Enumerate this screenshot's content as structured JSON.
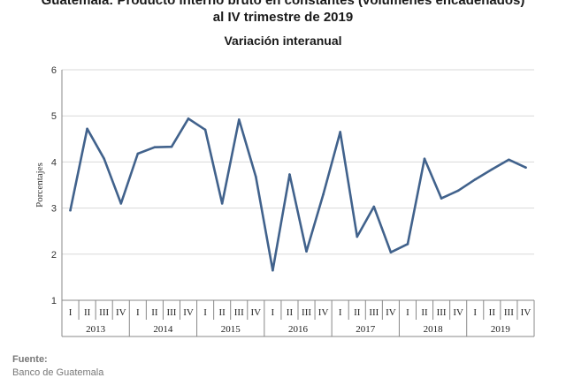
{
  "header": {
    "title_line1": "Guatemala: Producto interno bruto en constantes (volúmenes encadenados)",
    "title_line2": "al IV trimestre de 2019",
    "subtitle": "Variación interanual"
  },
  "footer": {
    "source_label": "Fuente:",
    "source_text": "Banco de Guatemala"
  },
  "chart_data": {
    "type": "line",
    "ylabel": "Porcentajes",
    "ylim": [
      1,
      6
    ],
    "yticks": [
      1,
      2,
      3,
      4,
      5,
      6
    ],
    "grid": true,
    "line_color": "#41628c",
    "grid_color": "#d9d9d9",
    "quarters": [
      "I",
      "II",
      "III",
      "IV"
    ],
    "years": [
      "2013",
      "2014",
      "2015",
      "2016",
      "2017",
      "2018",
      "2019"
    ],
    "values": [
      2.95,
      4.72,
      4.07,
      3.1,
      4.18,
      4.32,
      4.33,
      4.94,
      4.7,
      3.1,
      4.92,
      3.68,
      1.65,
      3.73,
      2.06,
      3.3,
      4.65,
      2.38,
      3.03,
      2.04,
      2.22,
      4.07,
      3.21,
      3.38,
      3.62,
      3.84,
      4.05,
      3.88
    ]
  }
}
